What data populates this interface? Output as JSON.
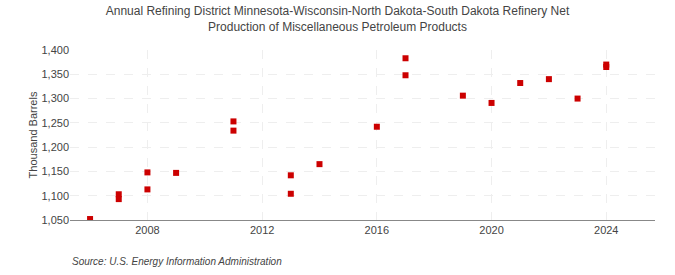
{
  "chart_data": {
    "type": "scatter",
    "title": "Annual Refining District Minnesota-Wisconsin-North Dakota-South Dakota Refinery Net\nProduction of Miscellaneous Petroleum Products",
    "ylabel": "Thousand Barrels",
    "annotations": [
      "Source: U.S. Energy Information Administration"
    ],
    "x": [
      2006,
      2007,
      2007,
      2008,
      2008,
      2009,
      2011,
      2011,
      2013,
      2013,
      2014,
      2016,
      2017,
      2017,
      2019,
      2020,
      2021,
      2022,
      2023,
      2024,
      2024
    ],
    "values": [
      1052,
      1103,
      1093,
      1148,
      1113,
      1147,
      1253,
      1234,
      1142,
      1104,
      1165,
      1242,
      1348,
      1383,
      1306,
      1291,
      1332,
      1340,
      1300,
      1365,
      1370
    ],
    "color": "#cc0000",
    "marker": "square",
    "grid": true,
    "xlim": [
      2005.3,
      2025.7
    ],
    "xticks": [
      2008,
      2012,
      2016,
      2020,
      2024
    ],
    "ylim": [
      1050,
      1400
    ],
    "yticks": [
      {
        "value": 1050,
        "label": "1,050"
      },
      {
        "value": 1100,
        "label": "1,100"
      },
      {
        "value": 1150,
        "label": "1,150"
      },
      {
        "value": 1200,
        "label": "1,200"
      },
      {
        "value": 1250,
        "label": "1,250"
      },
      {
        "value": 1300,
        "label": "1,300"
      },
      {
        "value": 1350,
        "label": "1,350"
      },
      {
        "value": 1400,
        "label": "1,400"
      }
    ]
  }
}
